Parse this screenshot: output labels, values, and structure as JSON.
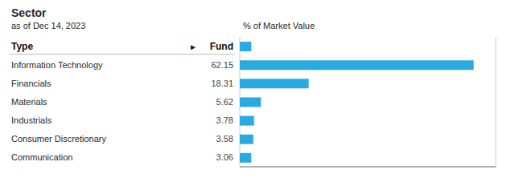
{
  "chart_data": {
    "type": "bar",
    "orientation": "horizontal",
    "title": "Sector",
    "subtitle": "as of Dec 14, 2023",
    "xlabel": "% of Market Value",
    "annotations": [
      "Type",
      "►",
      "Fund"
    ],
    "categories": [
      "Information Technology",
      "Financials",
      "Materials",
      "Industrials",
      "Consumer Discretionary",
      "Communication"
    ],
    "values": [
      62.15,
      18.31,
      5.62,
      3.78,
      3.58,
      3.06
    ],
    "header_bar_value": 3.06,
    "color": "#29abe2",
    "xlim": [
      0,
      68
    ],
    "xticks": [
      10,
      20,
      30,
      40,
      50,
      60
    ],
    "grid": true,
    "tick_labels": false,
    "data_labels": true
  }
}
